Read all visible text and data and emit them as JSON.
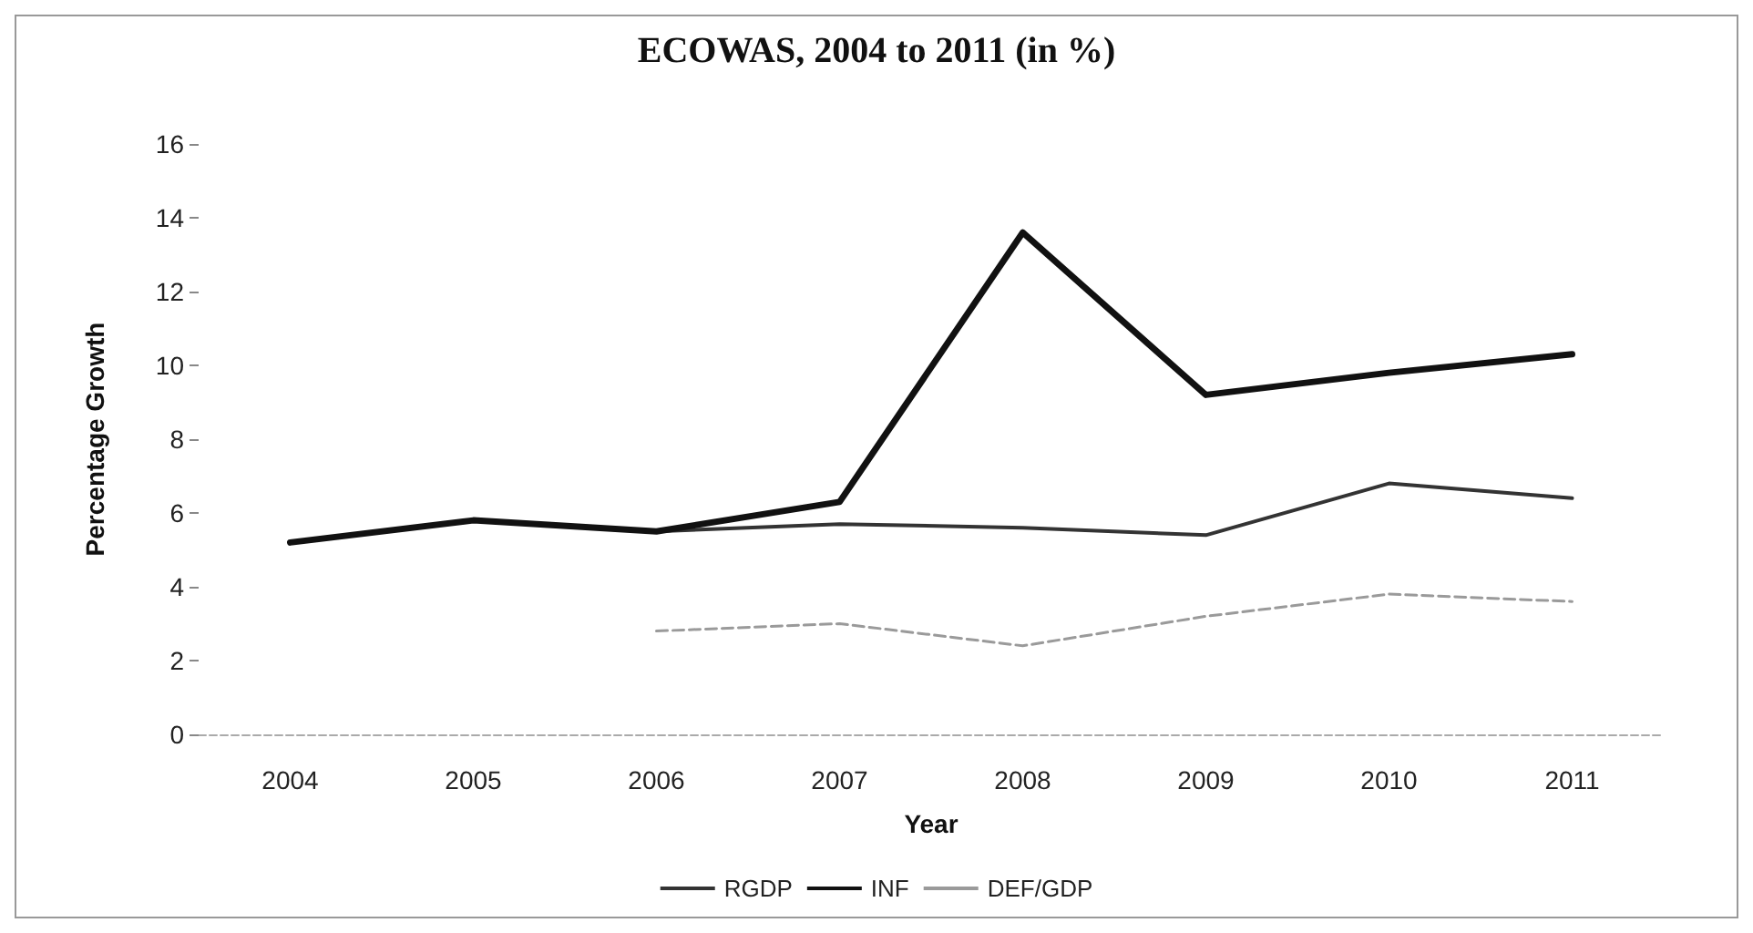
{
  "chart_data": {
    "type": "line",
    "title": "ECOWAS, 2004 to 2011 (in %)",
    "xlabel": "Year",
    "ylabel": "Percentage Growth",
    "categories": [
      "2004",
      "2005",
      "2006",
      "2007",
      "2008",
      "2009",
      "2010",
      "2011"
    ],
    "series": [
      {
        "name": "RGDP",
        "color": "#333333",
        "values": [
          5.2,
          5.8,
          5.5,
          5.7,
          5.6,
          5.4,
          6.8,
          6.4
        ]
      },
      {
        "name": "INF",
        "color": "#111111",
        "values": [
          5.2,
          5.8,
          5.5,
          6.3,
          13.6,
          9.2,
          9.8,
          10.3
        ]
      },
      {
        "name": "DEF/GDP",
        "color": "#9a9a9a",
        "line_style": "dashed",
        "values": [
          null,
          null,
          2.8,
          3.0,
          2.4,
          3.2,
          3.8,
          3.6
        ]
      }
    ],
    "ylim": [
      0,
      16
    ],
    "yticks": [
      0,
      2,
      4,
      6,
      8,
      10,
      12,
      14,
      16
    ],
    "grid": false,
    "legend": "bottom",
    "marker": "none"
  }
}
